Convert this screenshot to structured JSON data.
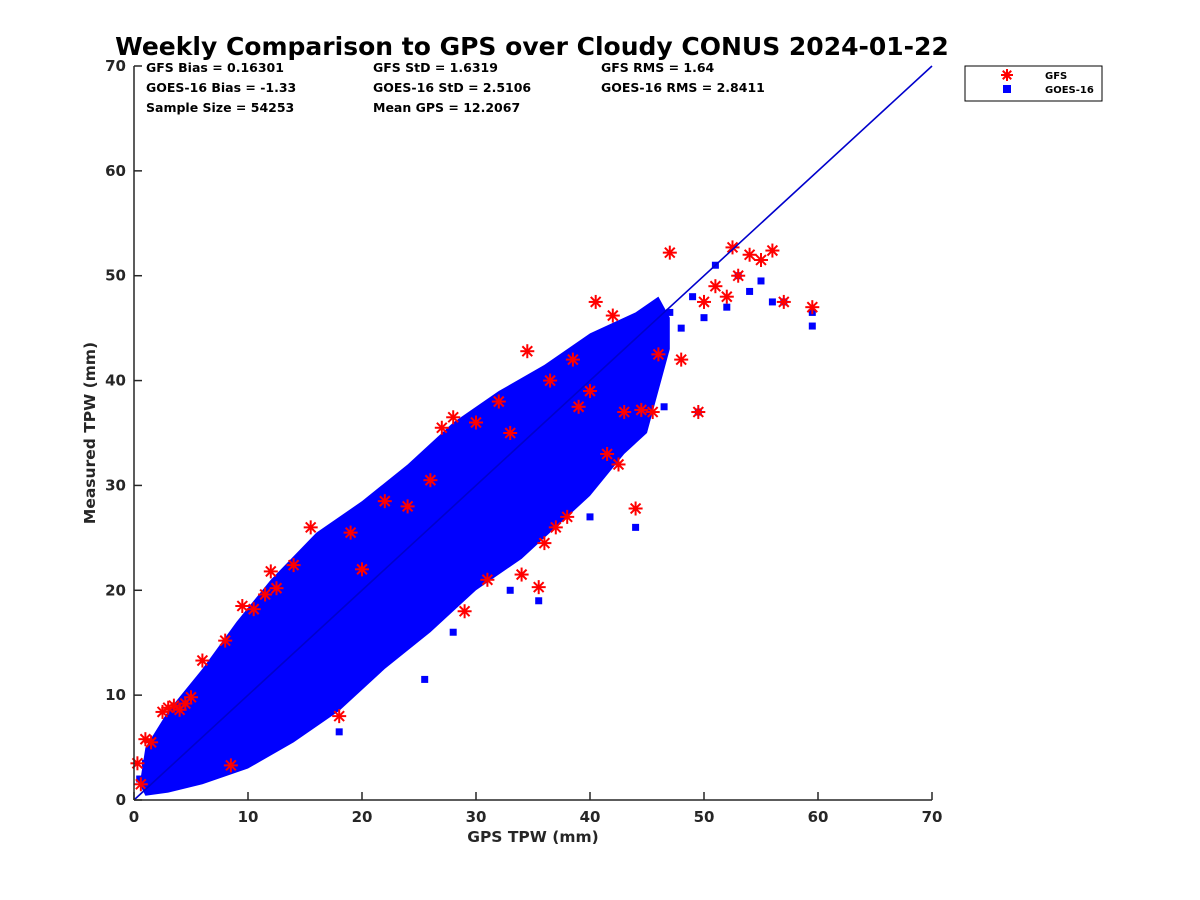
{
  "chart_data": {
    "type": "scatter",
    "title": "Weekly Comparison to GPS over Cloudy CONUS 2024-01-22",
    "xlabel": "GPS TPW (mm)",
    "ylabel": "Measured TPW (mm)",
    "xlim": [
      0,
      70
    ],
    "ylim": [
      0,
      70
    ],
    "xticks": [
      "0",
      "10",
      "20",
      "30",
      "40",
      "50",
      "60",
      "70"
    ],
    "yticks": [
      "0",
      "10",
      "20",
      "30",
      "40",
      "50",
      "60",
      "70"
    ],
    "grid": false,
    "legend_position": "outside-top-right",
    "reference_line": {
      "x": [
        0,
        70
      ],
      "y": [
        0,
        70
      ],
      "color": "#0000cc"
    },
    "stats": {
      "gfs_bias": "GFS Bias = 0.16301",
      "goes_bias": "GOES-16 Bias = -1.33",
      "sample_size": "Sample Size = 54253",
      "gfs_std": "GFS StD = 1.6319",
      "goes_std": "GOES-16 StD = 2.5106",
      "mean_gps": "Mean GPS = 12.2067",
      "gfs_rms": "GFS RMS = 1.64",
      "goes_rms": "GOES-16 RMS = 2.8411"
    },
    "series": [
      {
        "name": "GFS",
        "marker": "asterisk",
        "color": "#ff0000",
        "points": [
          [
            0.3,
            3.5
          ],
          [
            0.6,
            1.5
          ],
          [
            1.0,
            5.8
          ],
          [
            1.5,
            5.5
          ],
          [
            2.5,
            8.4
          ],
          [
            3.0,
            8.8
          ],
          [
            3.5,
            9.0
          ],
          [
            4.0,
            8.6
          ],
          [
            4.5,
            9.2
          ],
          [
            5.0,
            9.8
          ],
          [
            6.0,
            13.3
          ],
          [
            8.0,
            15.2
          ],
          [
            8.5,
            3.3
          ],
          [
            9.5,
            18.5
          ],
          [
            10.5,
            18.2
          ],
          [
            11.5,
            19.6
          ],
          [
            12.0,
            21.8
          ],
          [
            12.5,
            20.2
          ],
          [
            14.0,
            22.4
          ],
          [
            15.5,
            26.0
          ],
          [
            18.0,
            8.0
          ],
          [
            19.0,
            25.5
          ],
          [
            22.0,
            28.5
          ],
          [
            27.0,
            35.5
          ],
          [
            28.0,
            36.5
          ],
          [
            29.0,
            18.0
          ],
          [
            30.0,
            36.0
          ],
          [
            31.0,
            21.0
          ],
          [
            34.0,
            21.5
          ],
          [
            34.5,
            42.8
          ],
          [
            35.5,
            20.3
          ],
          [
            36.0,
            24.5
          ],
          [
            37.0,
            26.0
          ],
          [
            38.0,
            27.0
          ],
          [
            38.5,
            42.0
          ],
          [
            40.0,
            39.0
          ],
          [
            40.5,
            47.5
          ],
          [
            41.5,
            33.0
          ],
          [
            42.0,
            46.2
          ],
          [
            42.5,
            32.0
          ],
          [
            43.0,
            37.0
          ],
          [
            44.0,
            27.8
          ],
          [
            44.5,
            37.2
          ],
          [
            45.5,
            37.0
          ],
          [
            46.0,
            42.5
          ],
          [
            47.0,
            52.2
          ],
          [
            48.0,
            42.0
          ],
          [
            49.5,
            37.0
          ],
          [
            50.0,
            47.5
          ],
          [
            51.0,
            49.0
          ],
          [
            52.0,
            48.0
          ],
          [
            52.5,
            52.7
          ],
          [
            53.0,
            50.0
          ],
          [
            54.0,
            52.0
          ],
          [
            55.0,
            51.5
          ],
          [
            56.0,
            52.4
          ],
          [
            57.0,
            47.5
          ],
          [
            59.5,
            47.0
          ],
          [
            20.0,
            22.0
          ],
          [
            24.0,
            28.0
          ],
          [
            26.0,
            30.5
          ],
          [
            32.0,
            38.0
          ],
          [
            33.0,
            35.0
          ],
          [
            36.5,
            40.0
          ],
          [
            39.0,
            37.5
          ]
        ]
      },
      {
        "name": "GOES-16",
        "marker": "square",
        "color": "#0000ff",
        "points": [
          [
            0.5,
            2.0
          ],
          [
            1.0,
            3.5
          ],
          [
            1.5,
            2.2
          ],
          [
            2.5,
            4.0
          ],
          [
            3.0,
            6.5
          ],
          [
            4.0,
            5.5
          ],
          [
            5.0,
            7.8
          ],
          [
            6.0,
            5.0
          ],
          [
            7.0,
            9.5
          ],
          [
            8.0,
            7.0
          ],
          [
            9.0,
            12.0
          ],
          [
            10.0,
            9.0
          ],
          [
            11.0,
            14.0
          ],
          [
            12.0,
            12.5
          ],
          [
            13.0,
            16.5
          ],
          [
            14.0,
            14.0
          ],
          [
            15.0,
            18.5
          ],
          [
            16.0,
            16.0
          ],
          [
            17.0,
            20.5
          ],
          [
            18.0,
            18.0
          ],
          [
            18.0,
            6.5
          ],
          [
            19.0,
            22.5
          ],
          [
            20.0,
            19.5
          ],
          [
            21.0,
            24.5
          ],
          [
            22.0,
            21.5
          ],
          [
            23.0,
            26.5
          ],
          [
            24.0,
            23.0
          ],
          [
            25.0,
            28.5
          ],
          [
            26.0,
            24.5
          ],
          [
            27.0,
            30.5
          ],
          [
            28.0,
            27.0
          ],
          [
            29.0,
            32.5
          ],
          [
            30.0,
            29.5
          ],
          [
            31.0,
            34.5
          ],
          [
            32.0,
            31.0
          ],
          [
            33.0,
            36.0
          ],
          [
            34.0,
            33.0
          ],
          [
            35.0,
            38.0
          ],
          [
            36.0,
            35.0
          ],
          [
            37.0,
            39.5
          ],
          [
            38.0,
            36.5
          ],
          [
            39.0,
            41.5
          ],
          [
            40.0,
            38.0
          ],
          [
            41.0,
            43.0
          ],
          [
            42.0,
            40.0
          ],
          [
            43.0,
            44.5
          ],
          [
            44.0,
            41.0
          ],
          [
            45.0,
            46.0
          ],
          [
            46.0,
            43.0
          ],
          [
            47.0,
            46.5
          ],
          [
            48.0,
            45.0
          ],
          [
            49.0,
            48.0
          ],
          [
            50.0,
            46.0
          ],
          [
            51.0,
            51.0
          ],
          [
            52.0,
            47.0
          ],
          [
            53.0,
            50.0
          ],
          [
            54.0,
            48.5
          ],
          [
            55.0,
            49.5
          ],
          [
            56.0,
            47.5
          ],
          [
            57.0,
            47.5
          ],
          [
            59.5,
            45.2
          ],
          [
            59.5,
            46.5
          ],
          [
            49.5,
            37.0
          ],
          [
            44.0,
            26.0
          ],
          [
            35.5,
            19.0
          ],
          [
            25.5,
            11.5
          ],
          [
            33.0,
            20.0
          ],
          [
            40.0,
            27.0
          ],
          [
            46.5,
            37.5
          ],
          [
            28.0,
            16.0
          ]
        ]
      }
    ]
  }
}
